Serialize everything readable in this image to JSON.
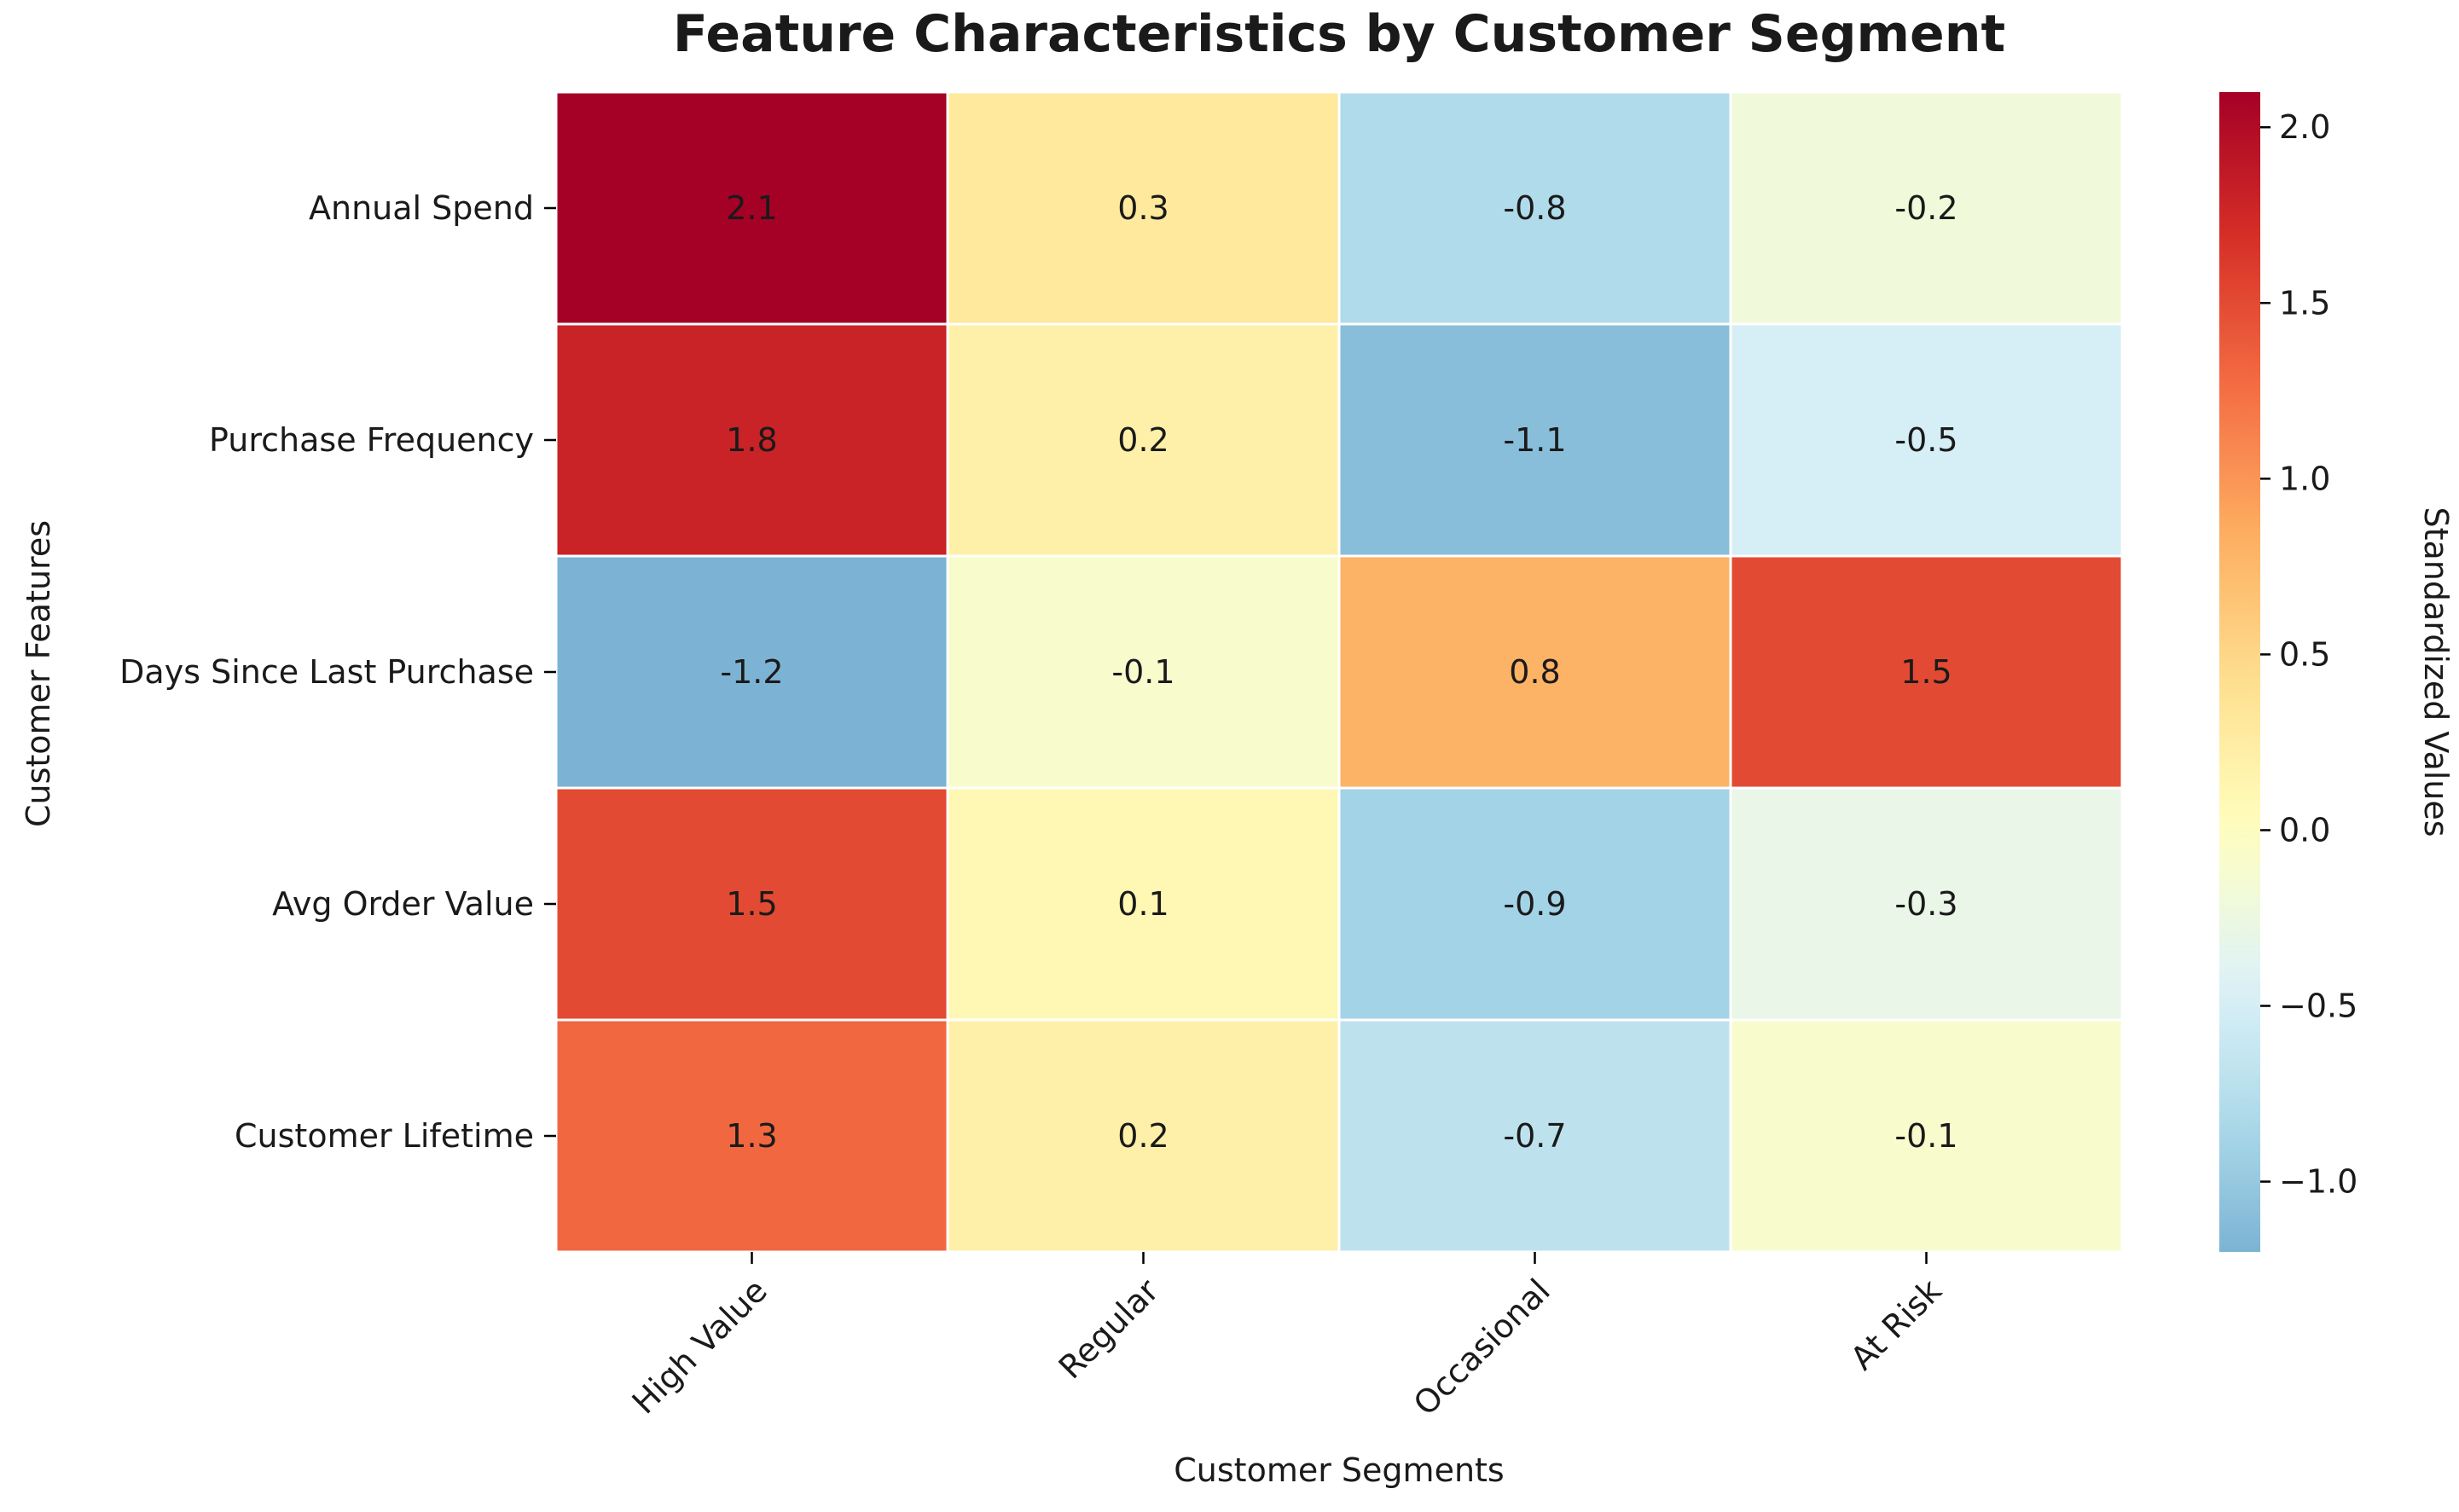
{
  "chart_data": {
    "type": "heatmap",
    "title": "Feature Characteristics by Customer Segment",
    "xlabel": "Customer Segments",
    "ylabel": "Customer Features",
    "colorbar_label": "Standardized Values",
    "x_categories": [
      "High Value",
      "Regular",
      "Occasional",
      "At Risk"
    ],
    "y_categories": [
      "Annual Spend",
      "Purchase Frequency",
      "Days Since Last Purchase",
      "Avg Order Value",
      "Customer Lifetime"
    ],
    "values": [
      [
        2.1,
        0.3,
        -0.8,
        -0.2
      ],
      [
        1.8,
        0.2,
        -1.1,
        -0.5
      ],
      [
        -1.2,
        -0.1,
        0.8,
        1.5
      ],
      [
        1.5,
        0.1,
        -0.9,
        -0.3
      ],
      [
        1.3,
        0.2,
        -0.7,
        -0.1
      ]
    ],
    "cell_labels": [
      [
        "2.1",
        "0.3",
        "-0.8",
        "-0.2"
      ],
      [
        "1.8",
        "0.2",
        "-1.1",
        "-0.5"
      ],
      [
        "-1.2",
        "-0.1",
        "0.8",
        "1.5"
      ],
      [
        "1.5",
        "0.1",
        "-0.9",
        "-0.3"
      ],
      [
        "1.3",
        "0.2",
        "-0.7",
        "-0.1"
      ]
    ],
    "colormap": "RdYlBu_r",
    "color_center": 0,
    "vmin": -1.2,
    "vmax": 2.1,
    "colorbar_ticks": [
      2.0,
      1.5,
      1.0,
      0.5,
      0.0,
      -0.5,
      -1.0
    ],
    "colorbar_tick_labels": [
      "2.0",
      "1.5",
      "1.0",
      "0.5",
      "0.0",
      "−0.5",
      "−1.0"
    ],
    "grid": false,
    "legend": "colorbar-right"
  }
}
